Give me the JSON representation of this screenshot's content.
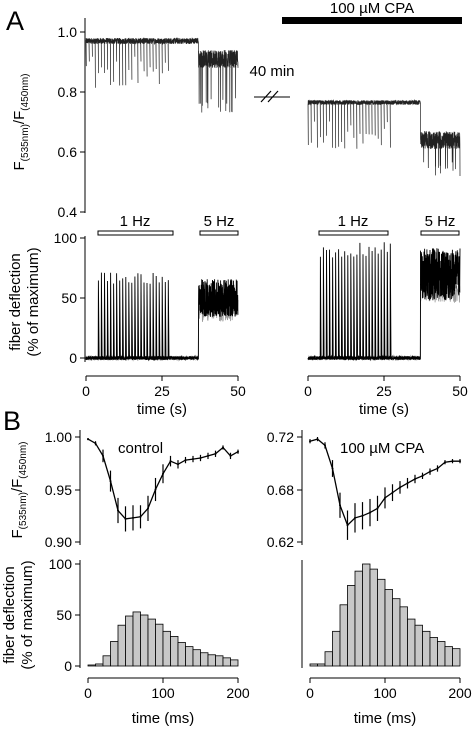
{
  "panel_labels": {
    "a": "A",
    "b": "B"
  },
  "annotations": {
    "cpa_bar": "100 µM CPA",
    "gap": "40 min",
    "freq_1hz": "1 Hz",
    "freq_5hz": "5 Hz",
    "control": "control",
    "cpa_label": "100 µM CPA"
  },
  "axes": {
    "ratio_ylabel_main": "F",
    "ratio_ylabel_sub1": "(535nm)",
    "ratio_ylabel_mid": "/F",
    "ratio_ylabel_sub2": "(450nm)",
    "fiber_ylabel_1": "fiber deflection",
    "fiber_ylabel_2": "(% of maximum)",
    "time_s": "time (s)",
    "time_ms": "time (ms)"
  },
  "chart_data": [
    {
      "id": "A_ratio_control",
      "type": "line",
      "ylabel": "F(535nm)/F(450nm)",
      "ylim": [
        0.4,
        1.05
      ],
      "yticks": [
        "1.0",
        "0.8",
        "0.6",
        "0.4"
      ],
      "xlim": [
        0,
        50
      ],
      "stim": [
        {
          "freq": "1 Hz",
          "start": 0,
          "end": 27
        },
        {
          "freq": "5 Hz",
          "start": 37,
          "end": 50
        }
      ],
      "baseline": 0.97,
      "noise": 0.02,
      "dip_1hz": 0.13,
      "dip_5hz_mean": 0.91,
      "dip_5hz_min": 0.73
    },
    {
      "id": "A_ratio_cpa",
      "type": "line",
      "ylim": [
        0.4,
        1.05
      ],
      "xlim": [
        0,
        50
      ],
      "baseline": 0.765,
      "noise": 0.015,
      "dip_1hz": 0.13,
      "dip_5hz_mean": 0.64,
      "dip_5hz_min": 0.52
    },
    {
      "id": "A_force_control",
      "type": "line",
      "ylabel": "fiber deflection (% of maximum)",
      "ylim": [
        0,
        100
      ],
      "yticks": [
        "100",
        "50",
        "0"
      ],
      "xlim": [
        0,
        50
      ],
      "xticks": [
        "0",
        "25",
        "50"
      ],
      "xlabel": "time (s)",
      "twitch_peak": 70,
      "tetanus_level": 50,
      "tetanus_peak": 66
    },
    {
      "id": "A_force_cpa",
      "type": "line",
      "ylim": [
        0,
        100
      ],
      "xlim": [
        0,
        50
      ],
      "xticks": [
        "0",
        "25",
        "50"
      ],
      "xlabel": "time (s)",
      "twitch_peak": 95,
      "tetanus_level": 70,
      "tetanus_peak": 92
    },
    {
      "id": "B_ratio_control",
      "type": "line",
      "title": "control",
      "ylabel": "F(535nm)/F(450nm)",
      "ylim": [
        0.9,
        1.0
      ],
      "yticks": [
        "1.00",
        "0.95",
        "0.90"
      ],
      "xlim": [
        0,
        200
      ],
      "x": [
        0,
        10,
        20,
        30,
        40,
        50,
        60,
        70,
        80,
        90,
        100,
        110,
        120,
        130,
        140,
        150,
        160,
        170,
        180,
        190,
        200
      ],
      "y": [
        0.998,
        0.994,
        0.982,
        0.958,
        0.93,
        0.922,
        0.923,
        0.924,
        0.932,
        0.95,
        0.965,
        0.977,
        0.974,
        0.978,
        0.979,
        0.98,
        0.982,
        0.984,
        0.99,
        0.982,
        0.986
      ],
      "err": [
        0.001,
        0.002,
        0.006,
        0.01,
        0.012,
        0.012,
        0.012,
        0.011,
        0.012,
        0.011,
        0.009,
        0.005,
        0.004,
        0.003,
        0.003,
        0.003,
        0.003,
        0.003,
        0.002,
        0.003,
        0.002
      ]
    },
    {
      "id": "B_ratio_cpa",
      "type": "line",
      "title": "100 µM CPA",
      "ylim": [
        0.62,
        0.72
      ],
      "yticks": [
        "0.72",
        "0.68",
        "0.62"
      ],
      "xlim": [
        0,
        200
      ],
      "x": [
        0,
        10,
        20,
        30,
        40,
        50,
        60,
        70,
        80,
        90,
        100,
        110,
        120,
        130,
        140,
        150,
        160,
        170,
        180,
        190,
        200
      ],
      "y": [
        0.716,
        0.718,
        0.712,
        0.69,
        0.655,
        0.636,
        0.643,
        0.645,
        0.648,
        0.652,
        0.662,
        0.667,
        0.672,
        0.676,
        0.68,
        0.683,
        0.687,
        0.69,
        0.696,
        0.697,
        0.697
      ],
      "err": [
        0.002,
        0.002,
        0.003,
        0.008,
        0.012,
        0.014,
        0.014,
        0.013,
        0.013,
        0.012,
        0.01,
        0.008,
        0.006,
        0.005,
        0.004,
        0.003,
        0.003,
        0.003,
        0.002,
        0.002,
        0.002
      ]
    },
    {
      "id": "B_hist_control",
      "type": "bar",
      "ylabel": "fiber deflection (% of maximum)",
      "ylim": [
        0,
        100
      ],
      "yticks": [
        "100",
        "50",
        "0"
      ],
      "xlim": [
        0,
        200
      ],
      "xticks": [
        "0",
        "100",
        "200"
      ],
      "xlabel": "time (ms)",
      "bin_width": 10,
      "bin_starts": [
        0,
        10,
        20,
        30,
        40,
        50,
        60,
        70,
        80,
        90,
        100,
        110,
        120,
        130,
        140,
        150,
        160,
        170,
        180,
        190
      ],
      "values": [
        1,
        2,
        10,
        24,
        40,
        49,
        53,
        50,
        46,
        41,
        34,
        29,
        23,
        19,
        16,
        13,
        11,
        10,
        8,
        6
      ]
    },
    {
      "id": "B_hist_cpa",
      "type": "bar",
      "ylim": [
        0,
        100
      ],
      "xlim": [
        0,
        200
      ],
      "xticks": [
        "0",
        "100",
        "200"
      ],
      "xlabel": "time (ms)",
      "bin_width": 10,
      "bin_starts": [
        0,
        10,
        20,
        30,
        40,
        50,
        60,
        70,
        80,
        90,
        100,
        110,
        120,
        130,
        140,
        150,
        160,
        170,
        180,
        190
      ],
      "values": [
        2,
        2,
        14,
        34,
        60,
        79,
        93,
        100,
        95,
        85,
        75,
        66,
        58,
        46,
        40,
        34,
        28,
        24,
        19,
        17
      ]
    }
  ]
}
